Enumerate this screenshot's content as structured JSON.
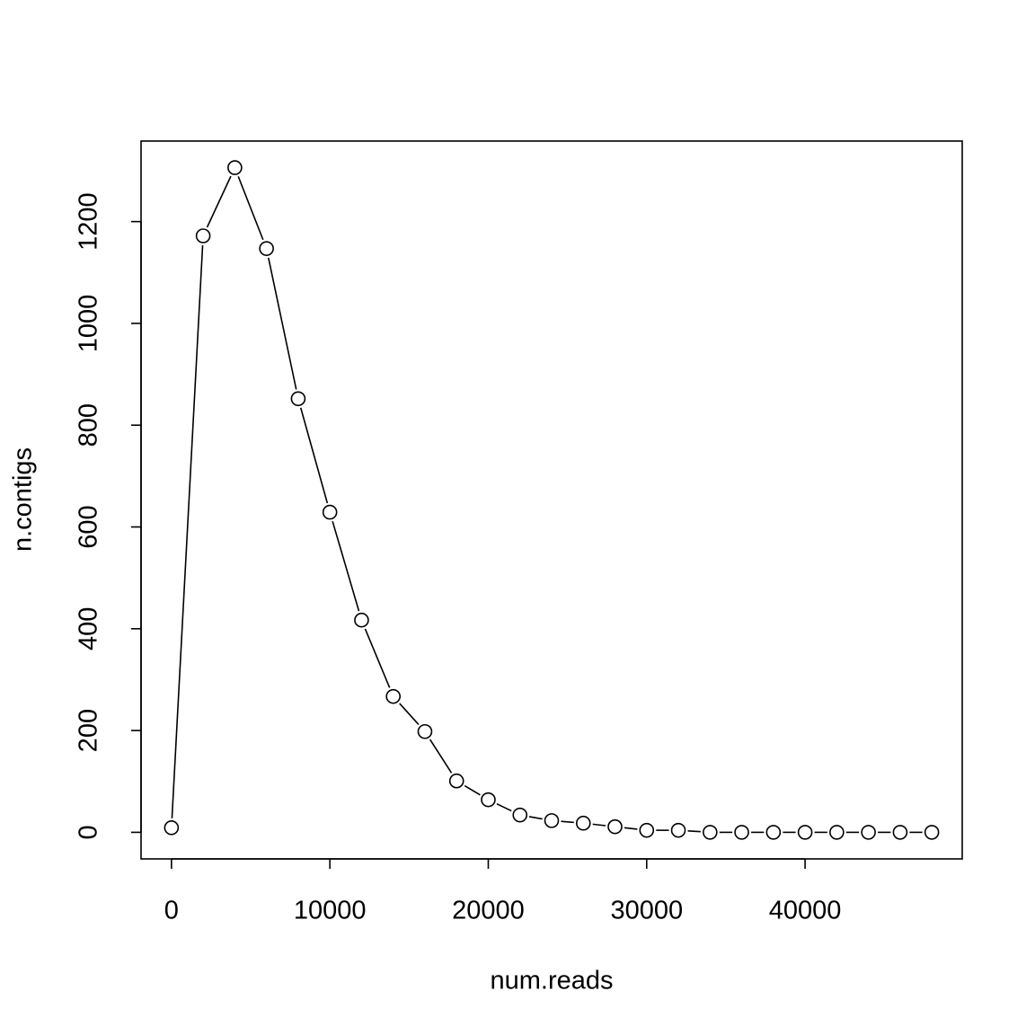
{
  "chart_data": {
    "type": "line",
    "markers": "open-circle",
    "x_label": "num.reads",
    "y_label": "n.contigs",
    "x": [
      0,
      2000,
      4000,
      6000,
      8000,
      10000,
      12000,
      14000,
      16000,
      18000,
      20000,
      22000,
      24000,
      26000,
      28000,
      30000,
      32000,
      34000,
      36000,
      38000,
      40000,
      42000,
      44000,
      46000,
      48000
    ],
    "series": [
      {
        "name": "n.contigs",
        "color": "#000000",
        "values": [
          9,
          1172,
          1306,
          1147,
          852,
          629,
          417,
          267,
          198,
          101,
          64,
          34,
          23,
          18,
          11,
          4,
          4,
          0,
          0,
          0,
          0,
          0,
          0,
          0,
          0
        ]
      }
    ],
    "xlim": [
      -1920,
      49920
    ],
    "xticks": [
      0,
      10000,
      20000,
      30000,
      40000
    ],
    "ylim": [
      -52.24,
      1358.24
    ],
    "yticks": [
      0,
      200,
      400,
      600,
      800,
      1000,
      1200
    ]
  }
}
